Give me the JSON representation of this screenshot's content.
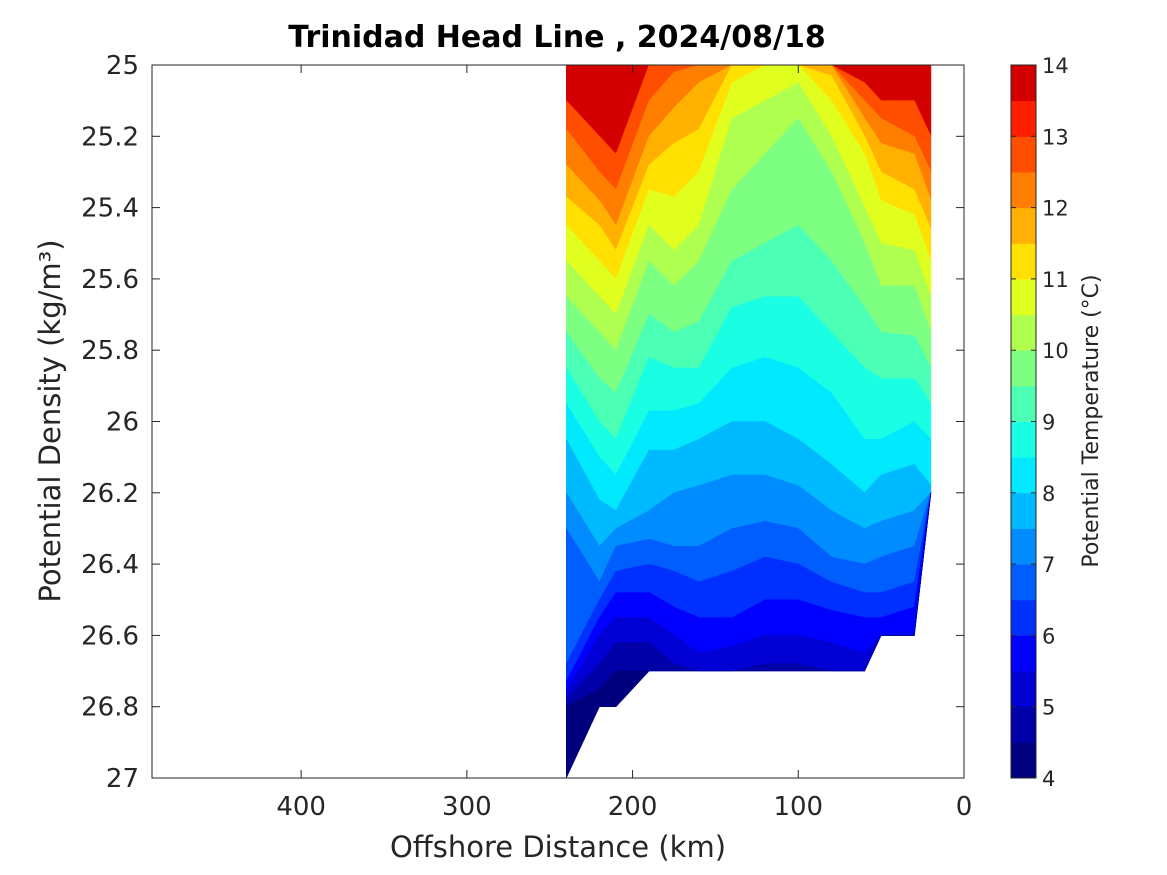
{
  "chart_data": {
    "type": "heatmap",
    "subtype": "filled-contour section",
    "title": "Trinidad Head Line , 2024/08/18",
    "xlabel": "Offshore Distance (km)",
    "ylabel": "Potential Density (kg/m³)",
    "xlim": [
      490,
      0
    ],
    "x_reversed": true,
    "ylim": [
      25,
      27
    ],
    "y_reversed": true,
    "x_ticks": [
      400,
      300,
      200,
      100,
      0
    ],
    "x_tick_labels": [
      "400",
      "300",
      "200",
      "100",
      "0"
    ],
    "y_ticks": [
      25,
      25.2,
      25.4,
      25.6,
      25.8,
      26,
      26.2,
      26.4,
      26.6,
      26.8,
      27
    ],
    "y_tick_labels": [
      "25",
      "25.2",
      "25.4",
      "25.6",
      "25.8",
      "26",
      "26.2",
      "26.4",
      "26.6",
      "26.8",
      "27"
    ],
    "grid": false,
    "colorbar": {
      "title": "Potential Temperature (°C)",
      "range": [
        4,
        14
      ],
      "step": 0.5,
      "tick_values": [
        4,
        5,
        6,
        7,
        8,
        9,
        10,
        11,
        12,
        13,
        14
      ],
      "tick_labels": [
        "4",
        "5",
        "6",
        "7",
        "8",
        "9",
        "10",
        "11",
        "12",
        "13",
        "14"
      ],
      "colormap": "jet",
      "colors": [
        "#00007f",
        "#0000a8",
        "#0000d4",
        "#0000ff",
        "#0030ff",
        "#005eff",
        "#008cff",
        "#00baff",
        "#00e9ff",
        "#1affe4",
        "#4bffb4",
        "#7dff82",
        "#afff50",
        "#e0ff1e",
        "#ffe000",
        "#ffb000",
        "#ff7e00",
        "#ff4e00",
        "#ff1e00",
        "#d40000"
      ]
    },
    "data_extent_x": [
      240,
      20
    ],
    "stations_x": [
      240,
      220,
      210,
      190,
      175,
      160,
      140,
      120,
      100,
      80,
      60,
      50,
      30,
      20
    ],
    "bottom_sigma": [
      27.0,
      26.8,
      26.8,
      26.7,
      26.7,
      26.7,
      26.7,
      26.7,
      26.7,
      26.7,
      26.7,
      26.6,
      26.6,
      26.2
    ],
    "isotherms": [
      {
        "temp": 13.0,
        "sigma": [
          25.1,
          25.2,
          25.25,
          25.0,
          25.0,
          25.0,
          25.0,
          25.0,
          25.0,
          25.0,
          25.05,
          25.1,
          25.1,
          25.2
        ]
      },
      {
        "temp": 12.5,
        "sigma": [
          25.18,
          25.3,
          25.35,
          25.1,
          25.02,
          25.0,
          25.0,
          25.0,
          25.0,
          25.0,
          25.1,
          25.15,
          25.2,
          25.3
        ]
      },
      {
        "temp": 12.0,
        "sigma": [
          25.28,
          25.38,
          25.45,
          25.2,
          25.12,
          25.05,
          25.0,
          25.0,
          25.0,
          25.0,
          25.15,
          25.22,
          25.25,
          25.38
        ]
      },
      {
        "temp": 11.5,
        "sigma": [
          25.37,
          25.45,
          25.52,
          25.28,
          25.22,
          25.18,
          25.0,
          25.0,
          25.0,
          25.03,
          25.2,
          25.3,
          25.35,
          25.46
        ]
      },
      {
        "temp": 11.0,
        "sigma": [
          25.45,
          25.55,
          25.6,
          25.35,
          25.37,
          25.3,
          25.05,
          25.0,
          25.0,
          25.1,
          25.25,
          25.38,
          25.42,
          25.55
        ]
      },
      {
        "temp": 10.5,
        "sigma": [
          25.55,
          25.65,
          25.7,
          25.45,
          25.52,
          25.45,
          25.15,
          25.1,
          25.05,
          25.2,
          25.4,
          25.5,
          25.52,
          25.65
        ]
      },
      {
        "temp": 10.0,
        "sigma": [
          25.65,
          25.75,
          25.8,
          25.55,
          25.62,
          25.55,
          25.35,
          25.25,
          25.15,
          25.3,
          25.5,
          25.62,
          25.62,
          25.75
        ]
      },
      {
        "temp": 9.5,
        "sigma": [
          25.75,
          25.88,
          25.92,
          25.7,
          25.75,
          25.72,
          25.55,
          25.5,
          25.45,
          25.55,
          25.68,
          25.75,
          25.76,
          25.85
        ]
      },
      {
        "temp": 9.0,
        "sigma": [
          25.85,
          26.0,
          26.05,
          25.82,
          25.85,
          25.85,
          25.68,
          25.65,
          25.65,
          25.75,
          25.85,
          25.88,
          25.88,
          25.95
        ]
      },
      {
        "temp": 8.5,
        "sigma": [
          25.95,
          26.1,
          26.15,
          25.97,
          25.97,
          25.95,
          25.85,
          25.82,
          25.85,
          25.92,
          26.05,
          26.05,
          26.0,
          26.05
        ]
      },
      {
        "temp": 8.0,
        "sigma": [
          26.05,
          26.22,
          26.25,
          26.08,
          26.08,
          26.05,
          26.0,
          26.0,
          26.05,
          26.12,
          26.2,
          26.15,
          26.12,
          26.18
        ]
      },
      {
        "temp": 7.5,
        "sigma": [
          26.2,
          26.35,
          26.3,
          26.25,
          26.2,
          26.18,
          26.15,
          26.15,
          26.18,
          26.25,
          26.3,
          26.28,
          26.25,
          26.2
        ]
      },
      {
        "temp": 7.0,
        "sigma": [
          26.3,
          26.45,
          26.35,
          26.33,
          26.35,
          26.35,
          26.3,
          26.28,
          26.3,
          26.38,
          26.4,
          26.38,
          26.35,
          26.2
        ]
      },
      {
        "temp": 6.5,
        "sigma": [
          26.68,
          26.5,
          26.42,
          26.4,
          26.42,
          26.45,
          26.42,
          26.38,
          26.4,
          26.45,
          26.48,
          26.48,
          26.45,
          26.2
        ]
      },
      {
        "temp": 6.0,
        "sigma": [
          26.73,
          26.55,
          26.48,
          26.48,
          26.52,
          26.55,
          26.55,
          26.5,
          26.5,
          26.53,
          26.55,
          26.55,
          26.52,
          26.2
        ]
      },
      {
        "temp": 5.5,
        "sigma": [
          26.76,
          26.6,
          26.55,
          26.55,
          26.6,
          26.65,
          26.63,
          26.6,
          26.6,
          26.62,
          26.65,
          26.6,
          26.6,
          26.2
        ]
      },
      {
        "temp": 5.0,
        "sigma": [
          26.78,
          26.68,
          26.62,
          26.62,
          26.68,
          26.7,
          26.7,
          26.68,
          26.68,
          26.7,
          26.7,
          26.6,
          26.6,
          26.2
        ]
      },
      {
        "temp": 4.5,
        "sigma": [
          26.8,
          26.75,
          26.7,
          26.7,
          26.7,
          26.7,
          26.7,
          26.7,
          26.7,
          26.7,
          26.7,
          26.6,
          26.6,
          26.2
        ]
      }
    ]
  }
}
